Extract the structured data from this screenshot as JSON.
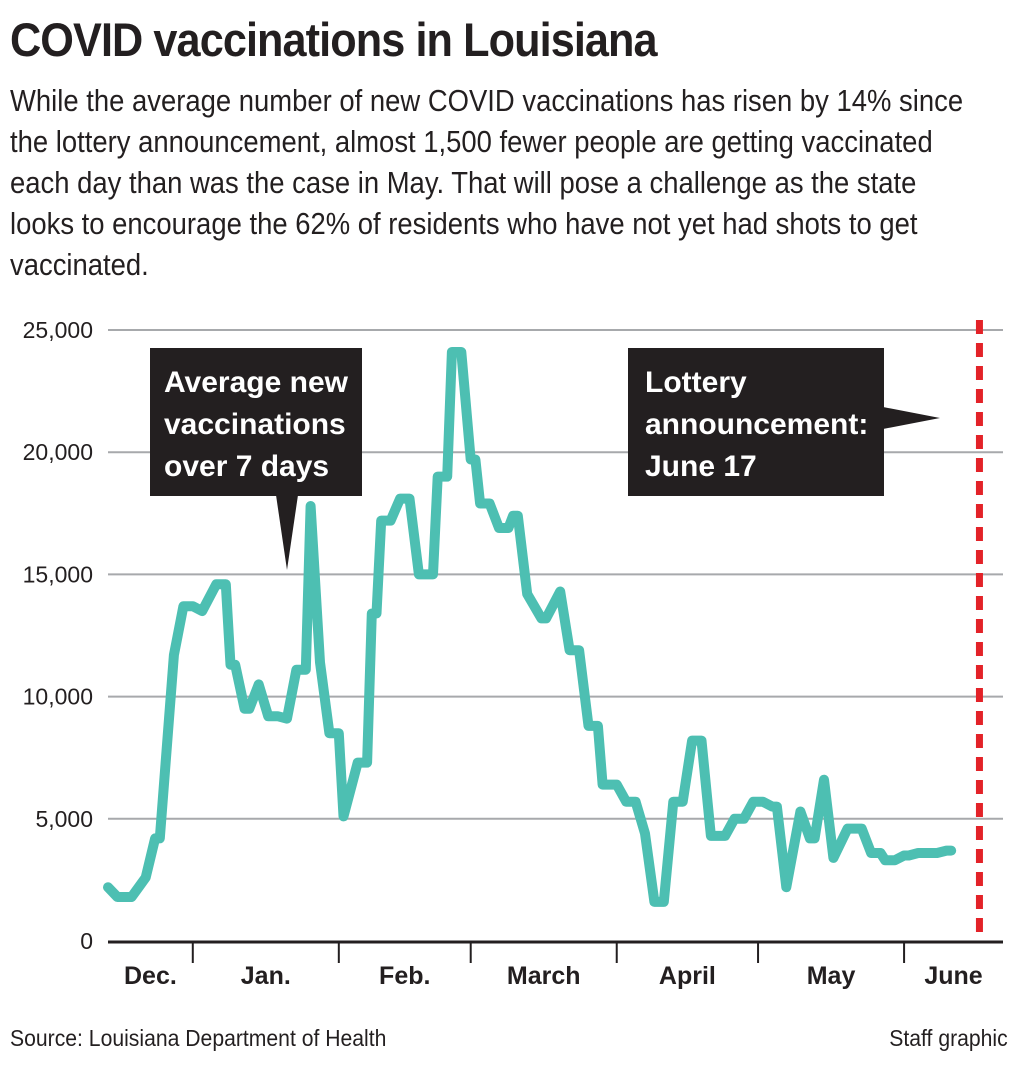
{
  "header": {
    "title": "COVID vaccinations in Louisiana",
    "subtitle": "While the average number of new COVID vaccinations has risen by 14% since the lottery announcement, almost 1,500 fewer people are getting vaccinated each day than was the case in May. That will pose a challenge as the state looks to encourage the 62% of residents who have not yet had shots to get vaccinated."
  },
  "footer": {
    "source": "Source: Louisiana Department of Health",
    "credit": "Staff graphic"
  },
  "chart_data": {
    "type": "line",
    "title": "COVID vaccinations in Louisiana",
    "ylabel": "Average new vaccinations over 7 days",
    "ylim": [
      0,
      25000
    ],
    "y_ticks": [
      0,
      5000,
      10000,
      15000,
      20000,
      25000
    ],
    "y_tick_labels": [
      "0",
      "5,000",
      "10,000",
      "15,000",
      "20,000",
      "25,000"
    ],
    "x_start": "Dec. 14",
    "months": [
      "Dec.",
      "Jan.",
      "Feb.",
      "March",
      "April",
      "May",
      "June"
    ],
    "grid": true,
    "colors": {
      "line": "#4dbfb2",
      "marker": "#e32228",
      "callout_bg": "#231f20",
      "grid": "#a7a9ac"
    },
    "series": [
      {
        "name": "Average new vaccinations over 7 days",
        "x": [
          0,
          2,
          5,
          8,
          10,
          11,
          14,
          16,
          18,
          20,
          23,
          25,
          26,
          27,
          29,
          30,
          32,
          34,
          36,
          38,
          40,
          42,
          43,
          45,
          47,
          49,
          50,
          53,
          55,
          56,
          57,
          58,
          60,
          62,
          64,
          66,
          67,
          69,
          70,
          72,
          73,
          75,
          77,
          78,
          79,
          81,
          83,
          85,
          86,
          87,
          89,
          92,
          93,
          96,
          98,
          100,
          102,
          104,
          105,
          108,
          110,
          112,
          114,
          116,
          118,
          120,
          122,
          124,
          126,
          128,
          129,
          131,
          133,
          135,
          137,
          139,
          141,
          142,
          144,
          147,
          149,
          150,
          152,
          154,
          157,
          160,
          162,
          164,
          165,
          167,
          169,
          170,
          172,
          174,
          176,
          178,
          179
        ],
        "values": [
          2200,
          1800,
          1800,
          2600,
          4200,
          4200,
          11700,
          13700,
          13700,
          13500,
          14600,
          14600,
          11300,
          11300,
          9500,
          9500,
          10500,
          9200,
          9200,
          9100,
          11100,
          11100,
          17800,
          11400,
          8500,
          8500,
          5100,
          7300,
          7300,
          13400,
          13400,
          17200,
          17200,
          18100,
          18100,
          15000,
          15000,
          15000,
          19000,
          19000,
          24100,
          24100,
          19700,
          19700,
          17900,
          17900,
          16900,
          16900,
          17400,
          17400,
          14200,
          13200,
          13200,
          14300,
          11900,
          11900,
          8800,
          8800,
          6400,
          6400,
          5700,
          5700,
          4400,
          1600,
          1600,
          5700,
          5700,
          8200,
          8200,
          4300,
          4300,
          4300,
          5000,
          5000,
          5700,
          5700,
          5500,
          5500,
          2200,
          5300,
          4200,
          4200,
          6600,
          3400,
          4600,
          4600,
          3600,
          3600,
          3300,
          3300,
          3500,
          3500,
          3600,
          3600,
          3600,
          3700,
          3700
        ]
      }
    ],
    "annotations": [
      {
        "name": "series-callout",
        "lines": [
          "Average new",
          "vaccinations",
          "over 7 days"
        ]
      },
      {
        "name": "lottery-callout",
        "lines": [
          "Lottery",
          "announcement:",
          "June 17"
        ]
      }
    ],
    "reference_line": {
      "label": "Lottery announcement: June 17"
    }
  }
}
